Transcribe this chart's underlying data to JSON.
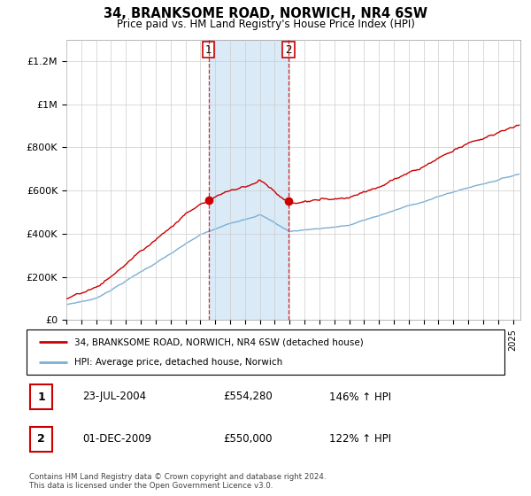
{
  "title": "34, BRANKSOME ROAD, NORWICH, NR4 6SW",
  "subtitle": "Price paid vs. HM Land Registry's House Price Index (HPI)",
  "ylim": [
    0,
    1300000
  ],
  "sale1_x": 2004.55,
  "sale1_price": 554280,
  "sale2_x": 2009.917,
  "sale2_price": 550000,
  "legend_line1": "34, BRANKSOME ROAD, NORWICH, NR4 6SW (detached house)",
  "legend_line2": "HPI: Average price, detached house, Norwich",
  "table_row1": [
    "1",
    "23-JUL-2004",
    "£554,280",
    "146% ↑ HPI"
  ],
  "table_row2": [
    "2",
    "01-DEC-2009",
    "£550,000",
    "122% ↑ HPI"
  ],
  "footer": "Contains HM Land Registry data © Crown copyright and database right 2024.\nThis data is licensed under the Open Government Licence v3.0.",
  "red_color": "#cc0000",
  "blue_color": "#7aafd4",
  "shade_color": "#daeaf7",
  "grid_color": "#cccccc",
  "xlim_left": 1995,
  "xlim_right": 2025.5
}
